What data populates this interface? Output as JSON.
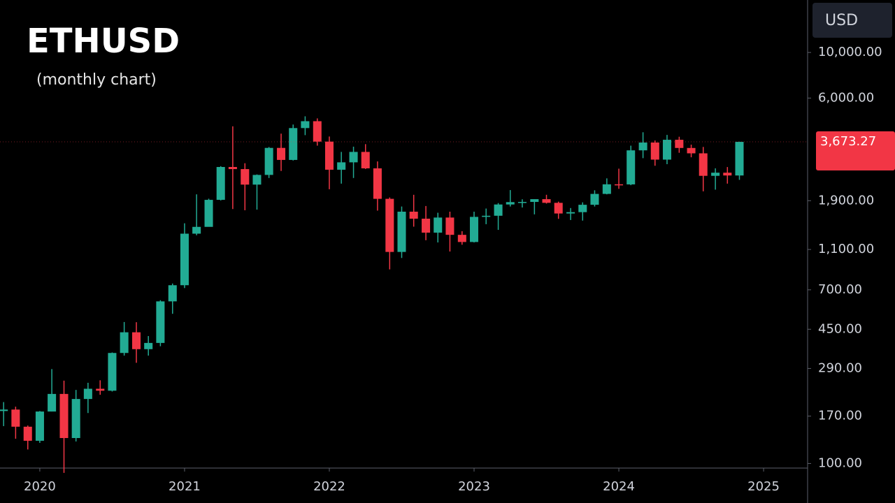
{
  "chart_data": {
    "type": "candlestick",
    "title": "ETHUSD",
    "subtitle": "(monthly chart)",
    "y_axis_label": "USD",
    "log_scale": true,
    "grid": false,
    "up_color": "#22ab94",
    "down_color": "#f23645",
    "xlim": [
      2019.725,
      2025.304
    ],
    "xticks": [
      2020,
      2021,
      2022,
      2023,
      2024,
      2025
    ],
    "ylim": [
      95,
      18000
    ],
    "yticks": [
      {
        "value": 100,
        "label": "100.00"
      },
      {
        "value": 170,
        "label": "170.00"
      },
      {
        "value": 290,
        "label": "290.00"
      },
      {
        "value": 450,
        "label": "450.00"
      },
      {
        "value": 700,
        "label": "700.00"
      },
      {
        "value": 1100,
        "label": "1,100.00"
      },
      {
        "value": 1900,
        "label": "1,900.00"
      },
      {
        "value": 6000,
        "label": "6,000.00"
      },
      {
        "value": 10000,
        "label": "10,000.00"
      }
    ],
    "last_price": {
      "value": 3673.27,
      "label": "3,673.27"
    },
    "x": [
      2019.75,
      2019.833,
      2019.917,
      2020,
      2020.083,
      2020.167,
      2020.25,
      2020.333,
      2020.417,
      2020.5,
      2020.583,
      2020.667,
      2020.75,
      2020.833,
      2020.917,
      2021,
      2021.083,
      2021.167,
      2021.25,
      2021.333,
      2021.417,
      2021.5,
      2021.583,
      2021.667,
      2021.75,
      2021.833,
      2021.917,
      2022,
      2022.083,
      2022.167,
      2022.25,
      2022.333,
      2022.417,
      2022.5,
      2022.583,
      2022.667,
      2022.75,
      2022.833,
      2022.917,
      2023,
      2023.083,
      2023.167,
      2023.25,
      2023.333,
      2023.417,
      2023.5,
      2023.583,
      2023.667,
      2023.75,
      2023.833,
      2023.917,
      2024,
      2024.083,
      2024.167,
      2024.25,
      2024.333,
      2024.417,
      2024.5,
      2024.583,
      2024.667,
      2024.75,
      2024.833
    ],
    "open": [
      180,
      183,
      151,
      129,
      179,
      218,
      133,
      206,
      231,
      226,
      345,
      435,
      360,
      386,
      615,
      737,
      1313,
      1417,
      1918,
      2772,
      2707,
      2275,
      2536,
      3433,
      3000,
      4287,
      4630,
      3683,
      2688,
      2920,
      3282,
      2730,
      1940,
      1070,
      1680,
      1553,
      1328,
      1573,
      1296,
      1196,
      1585,
      1605,
      1821,
      1870,
      1874,
      1933,
      1855,
      1646,
      1671,
      1815,
      2050,
      2283,
      2280,
      3340,
      3645,
      3010,
      3760,
      3430,
      3230,
      2510,
      2600,
      2520
    ],
    "high": [
      199,
      189,
      153,
      180,
      288,
      253,
      228,
      247,
      254,
      347,
      488,
      487,
      417,
      623,
      751,
      1475,
      2040,
      1943,
      2797,
      4372,
      2891,
      2550,
      3466,
      4027,
      4460,
      4891,
      4778,
      3900,
      3282,
      3480,
      3580,
      2950,
      1970,
      1780,
      2030,
      1790,
      1660,
      1680,
      1350,
      1680,
      1740,
      1850,
      2140,
      1930,
      1930,
      2030,
      1880,
      1750,
      1865,
      2135,
      2440,
      2720,
      3520,
      4090,
      3730,
      3970,
      3890,
      3560,
      3470,
      2730,
      2770,
      3680
    ],
    "low": [
      152,
      132,
      117,
      126,
      179,
      90,
      128,
      176,
      216,
      224,
      335,
      309,
      335,
      372,
      535,
      714,
      1290,
      1434,
      1905,
      1730,
      1707,
      1719,
      2450,
      2651,
      2980,
      3960,
      3520,
      2160,
      2300,
      2450,
      2710,
      1700,
      880,
      1000,
      1420,
      1220,
      1190,
      1075,
      1160,
      1190,
      1460,
      1370,
      1780,
      1760,
      1630,
      1840,
      1550,
      1530,
      1520,
      1780,
      2040,
      2170,
      2260,
      3060,
      2810,
      2860,
      3250,
      3090,
      2110,
      2150,
      2300,
      2400
    ],
    "close": [
      183,
      151,
      129,
      179,
      218,
      133,
      206,
      231,
      226,
      345,
      435,
      360,
      386,
      615,
      737,
      1313,
      1417,
      1918,
      2772,
      2707,
      2275,
      2536,
      3433,
      3000,
      4287,
      4630,
      3683,
      2688,
      2920,
      3282,
      2730,
      1940,
      1070,
      1680,
      1553,
      1328,
      1573,
      1296,
      1196,
      1585,
      1605,
      1821,
      1870,
      1874,
      1933,
      1855,
      1646,
      1671,
      1815,
      2050,
      2283,
      2280,
      3340,
      3645,
      3010,
      3760,
      3430,
      3230,
      2510,
      2600,
      2520,
      3673.27
    ]
  }
}
